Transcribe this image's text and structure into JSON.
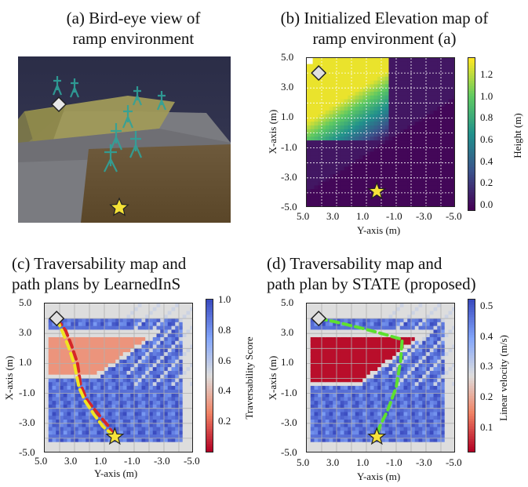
{
  "panels": {
    "a": {
      "title_line1": "(a) Bird-eye view of",
      "title_line2": "ramp environment"
    },
    "b": {
      "title_line1": "(b) Initialized Elevation map of",
      "title_line2": "ramp environment (a)"
    },
    "c": {
      "title_line1": "(c) Traversability map and",
      "title_line2": "path plans by LearnedInS"
    },
    "d": {
      "title_line1": "(d) Traversability map and",
      "title_line2": "path plan by STATE (proposed)"
    }
  },
  "chart_data": [
    {
      "id": "b",
      "type": "heatmap",
      "xlabel": "Y-axis (m)",
      "ylabel": "X-axis (m)",
      "xlim": [
        5.0,
        -5.0
      ],
      "ylim": [
        -5.0,
        5.0
      ],
      "x_ticks": [
        "5.0",
        "3.0",
        "1.0",
        "-1.0",
        "-3.0",
        "-5.0"
      ],
      "y_ticks": [
        "5.0",
        "3.0",
        "1.0",
        "-1.0",
        "-3.0",
        "-5.0"
      ],
      "colorbar": {
        "label": "Height (m)",
        "ticks": [
          "1.2",
          "1.0",
          "0.8",
          "0.6",
          "0.4",
          "0.2",
          "0.0"
        ],
        "range": [
          -0.05,
          1.35
        ],
        "colormap": "viridis"
      },
      "start": {
        "y": 4.2,
        "x": 4.0
      },
      "goal": {
        "y": 0.3,
        "x": -3.9
      }
    },
    {
      "id": "c",
      "type": "heatmap",
      "xlabel": "Y-axis (m)",
      "ylabel": "X-axis (m)",
      "xlim": [
        5.0,
        -5.0
      ],
      "ylim": [
        -5.0,
        5.0
      ],
      "x_ticks": [
        "5.0",
        "3.0",
        "1.0",
        "-1.0",
        "-3.0",
        "-5.0"
      ],
      "y_ticks": [
        "5.0",
        "3.0",
        "1.0",
        "-1.0",
        "-3.0",
        "-5.0"
      ],
      "colorbar": {
        "label": "Traversability Score",
        "ticks": [
          "1.0",
          "0.8",
          "0.6",
          "0.4",
          "0.2"
        ],
        "range": [
          0.0,
          1.0
        ],
        "colormap": "coolwarm_r"
      },
      "start": {
        "y": 4.2,
        "x": 4.0
      },
      "goal": {
        "y": 0.3,
        "x": -3.9
      },
      "paths": [
        {
          "color": "#d62728",
          "points": [
            [
              4.2,
              4.0
            ],
            [
              3.6,
              3.2
            ],
            [
              3.2,
              2.2
            ],
            [
              2.8,
              1.0
            ],
            [
              2.6,
              -0.4
            ],
            [
              2.2,
              -1.4
            ],
            [
              1.4,
              -2.4
            ],
            [
              0.8,
              -3.1
            ],
            [
              0.4,
              -3.7
            ]
          ]
        },
        {
          "color": "#f0e422",
          "points": [
            [
              4.2,
              4.0
            ],
            [
              3.8,
              3.1
            ],
            [
              3.4,
              2.1
            ],
            [
              3.0,
              0.9
            ],
            [
              2.7,
              -0.6
            ],
            [
              2.3,
              -1.5
            ],
            [
              1.7,
              -2.4
            ],
            [
              1.1,
              -3.2
            ],
            [
              0.3,
              -3.9
            ]
          ]
        }
      ]
    },
    {
      "id": "d",
      "type": "heatmap",
      "xlabel": "Y-axis (m)",
      "ylabel": "X-axis (m)",
      "xlim": [
        5.0,
        -5.0
      ],
      "ylim": [
        -5.0,
        5.0
      ],
      "x_ticks": [
        "5.0",
        "3.0",
        "1.0",
        "-1.0",
        "-3.0",
        "-5.0"
      ],
      "y_ticks": [
        "5.0",
        "3.0",
        "1.0",
        "-1.0",
        "-3.0",
        "-5.0"
      ],
      "colorbar": {
        "label": "Linear velocity (m/s)",
        "ticks": [
          "0.5",
          "0.4",
          "0.3",
          "0.2",
          "0.1"
        ],
        "range": [
          0.02,
          0.52
        ],
        "colormap": "coolwarm_r"
      },
      "start": {
        "y": 4.2,
        "x": 4.0
      },
      "goal": {
        "y": 0.3,
        "x": -3.9
      },
      "paths": [
        {
          "color": "#5ee02f",
          "points": [
            [
              4.2,
              4.0
            ],
            [
              3.2,
              3.8
            ],
            [
              1.5,
              3.4
            ],
            [
              0.0,
              3.0
            ],
            [
              -1.4,
              2.6
            ],
            [
              -1.3,
              1.2
            ],
            [
              -1.0,
              -0.6
            ],
            [
              -0.4,
              -2.2
            ],
            [
              0.1,
              -3.2
            ],
            [
              0.3,
              -3.9
            ]
          ]
        }
      ]
    }
  ]
}
